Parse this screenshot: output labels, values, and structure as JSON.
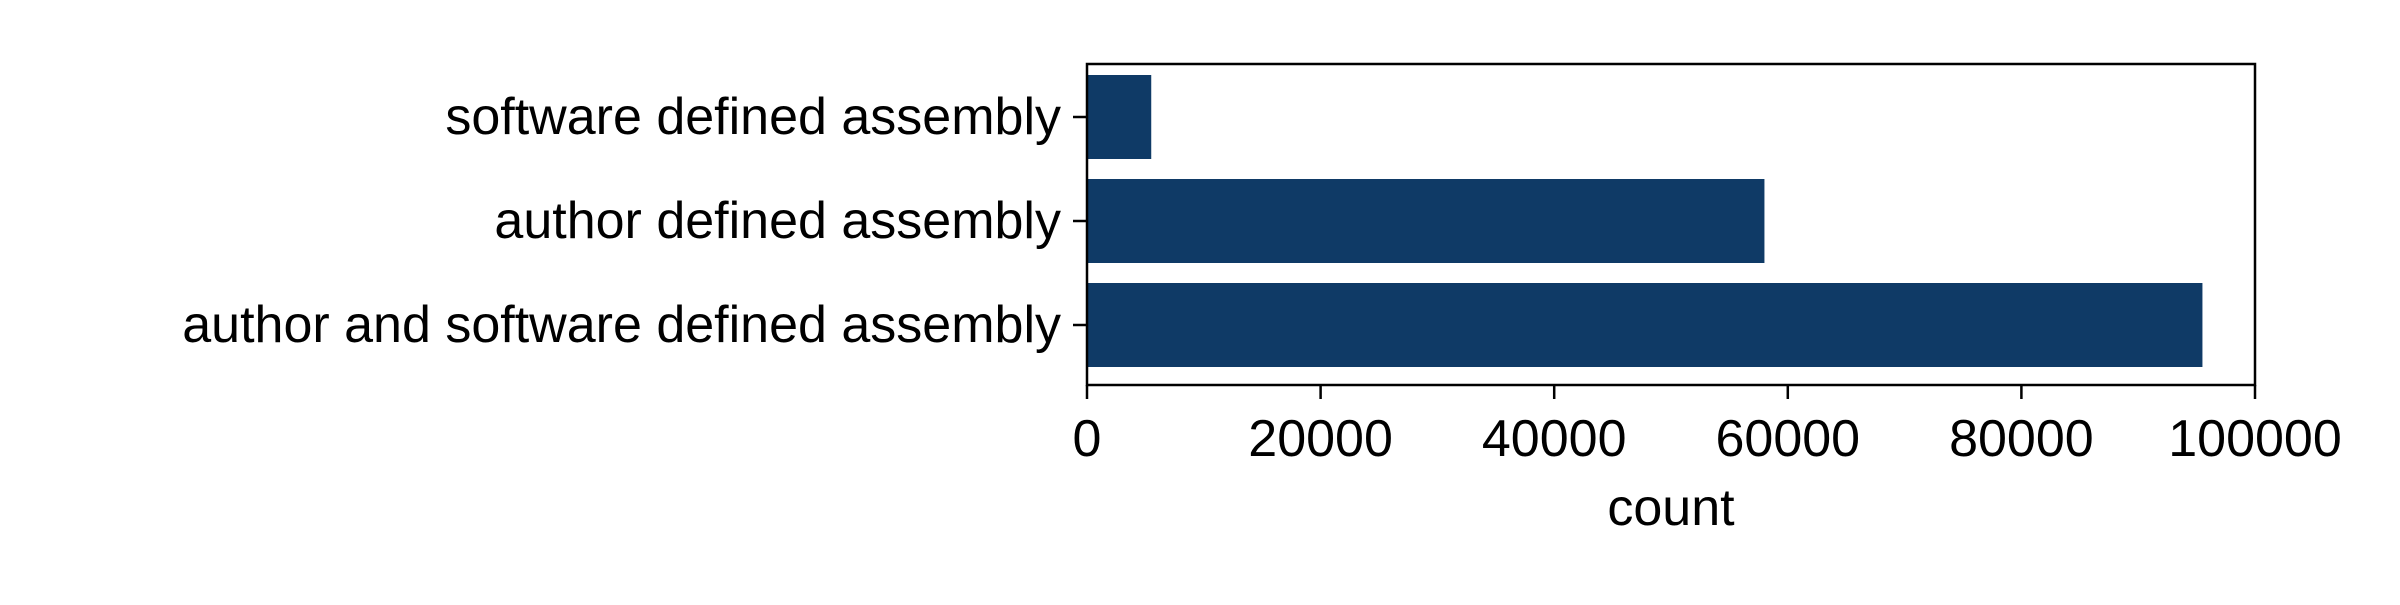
{
  "chart_data": {
    "type": "bar",
    "orientation": "horizontal",
    "title": "",
    "xlabel": "count",
    "ylabel": "",
    "categories": [
      "software defined assembly",
      "author defined assembly",
      "author and software defined assembly"
    ],
    "values": [
      5500,
      58000,
      95500
    ],
    "xlim": [
      0,
      100000
    ],
    "xticks": [
      0,
      20000,
      40000,
      60000,
      80000,
      100000
    ],
    "xtick_labels": [
      "0",
      "20000",
      "40000",
      "60000",
      "80000",
      "100000"
    ],
    "grid": false,
    "legend": "none",
    "bar_color": "#0f3a66"
  }
}
